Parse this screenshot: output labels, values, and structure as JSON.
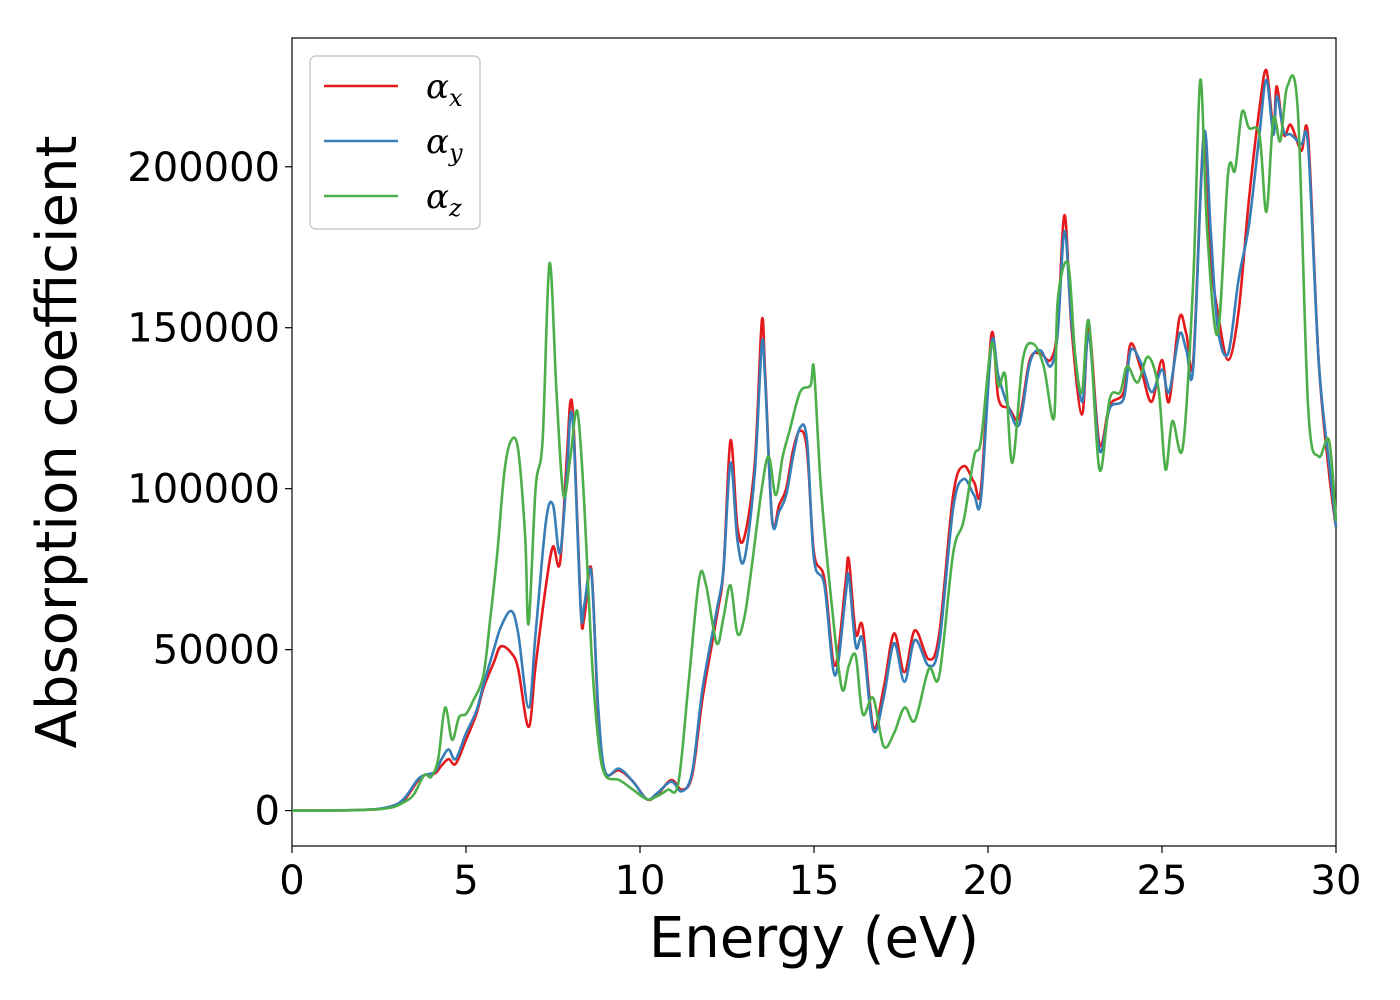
{
  "chart_data": {
    "type": "line",
    "xlabel": "Energy (eV)",
    "ylabel": "Absorption coefficient",
    "xlim": [
      0,
      30
    ],
    "ylim": [
      -11000,
      240000
    ],
    "xticks": [
      0,
      5,
      10,
      15,
      20,
      25,
      30
    ],
    "xtick_labels": [
      "0",
      "5",
      "10",
      "15",
      "20",
      "25",
      "30"
    ],
    "yticks": [
      0,
      50000,
      100000,
      150000,
      200000
    ],
    "ytick_labels": [
      "0",
      "50000",
      "100000",
      "150000",
      "200000"
    ],
    "grid": false,
    "legend_position": "top-left",
    "series": [
      {
        "symbol": "α",
        "subscript": "x",
        "color": "#e41a1c",
        "x": [
          0,
          2,
          2.8,
          3.2,
          3.6,
          3.8,
          4.1,
          4.3,
          4.5,
          4.7,
          5.0,
          5.3,
          5.5,
          5.8,
          6.0,
          6.3,
          6.5,
          6.8,
          7.0,
          7.3,
          7.5,
          7.7,
          7.9,
          8.0,
          8.1,
          8.3,
          8.4,
          8.6,
          8.8,
          9.0,
          9.4,
          9.8,
          10.2,
          10.5,
          10.9,
          11.2,
          11.5,
          11.8,
          12.2,
          12.4,
          12.6,
          12.8,
          13.0,
          13.3,
          13.5,
          13.6,
          13.8,
          14.0,
          14.2,
          14.4,
          14.6,
          14.8,
          15.0,
          15.3,
          15.6,
          15.9,
          16.0,
          16.2,
          16.4,
          16.7,
          17.0,
          17.3,
          17.6,
          17.9,
          18.3,
          18.6,
          19.0,
          19.3,
          19.6,
          19.8,
          20.1,
          20.3,
          20.6,
          20.9,
          21.2,
          21.5,
          21.8,
          22.0,
          22.2,
          22.4,
          22.7,
          22.9,
          23.2,
          23.5,
          23.9,
          24.1,
          24.4,
          24.7,
          25.0,
          25.2,
          25.5,
          25.7,
          25.9,
          26.2,
          26.4,
          26.6,
          26.9,
          27.2,
          27.5,
          27.8,
          28.0,
          28.2,
          28.3,
          28.5,
          28.7,
          29.0,
          29.2,
          29.5,
          29.8,
          30.0
        ],
        "y": [
          0,
          200,
          1000,
          3000,
          9000,
          11000,
          11500,
          14000,
          16000,
          14500,
          22000,
          30000,
          38000,
          46000,
          51000,
          49000,
          44000,
          26000,
          45000,
          70000,
          82000,
          77000,
          110000,
          127000,
          118000,
          62000,
          60000,
          75000,
          30000,
          12000,
          12500,
          9000,
          3500,
          5000,
          9500,
          6500,
          11000,
          35000,
          60000,
          75000,
          115000,
          88000,
          85000,
          108000,
          152000,
          135000,
          90000,
          95000,
          100000,
          112000,
          118000,
          112000,
          80000,
          72000,
          45000,
          70000,
          78000,
          55000,
          57000,
          26000,
          38000,
          55000,
          43000,
          56000,
          47000,
          55000,
          98000,
          107000,
          102000,
          100000,
          148000,
          128000,
          125000,
          122000,
          140000,
          142000,
          140000,
          150000,
          185000,
          150000,
          123000,
          150000,
          114000,
          126000,
          130000,
          145000,
          137000,
          127000,
          140000,
          127000,
          153000,
          148000,
          140000,
          210000,
          172000,
          155000,
          140000,
          155000,
          190000,
          218000,
          230000,
          212000,
          225000,
          210000,
          213000,
          205000,
          209000,
          140000,
          105000,
          88000
        ]
      },
      {
        "symbol": "α",
        "subscript": "y",
        "color": "#377eb8",
        "x": [
          0,
          2,
          2.8,
          3.2,
          3.6,
          3.8,
          4.1,
          4.3,
          4.5,
          4.7,
          5.0,
          5.3,
          5.5,
          5.8,
          6.0,
          6.3,
          6.5,
          6.8,
          7.0,
          7.3,
          7.5,
          7.7,
          7.9,
          8.0,
          8.1,
          8.3,
          8.4,
          8.6,
          8.8,
          9.0,
          9.4,
          9.8,
          10.2,
          10.5,
          10.9,
          11.2,
          11.5,
          11.8,
          12.2,
          12.4,
          12.6,
          12.8,
          13.0,
          13.3,
          13.5,
          13.6,
          13.8,
          14.0,
          14.2,
          14.4,
          14.6,
          14.8,
          15.0,
          15.3,
          15.6,
          15.9,
          16.0,
          16.2,
          16.4,
          16.7,
          17.0,
          17.3,
          17.6,
          17.9,
          18.3,
          18.6,
          19.0,
          19.3,
          19.6,
          19.8,
          20.1,
          20.3,
          20.6,
          20.9,
          21.2,
          21.5,
          21.8,
          22.0,
          22.2,
          22.4,
          22.7,
          22.9,
          23.2,
          23.5,
          23.9,
          24.1,
          24.4,
          24.7,
          25.0,
          25.2,
          25.5,
          25.7,
          25.9,
          26.2,
          26.4,
          26.6,
          26.9,
          27.2,
          27.5,
          27.8,
          28.0,
          28.2,
          28.3,
          28.5,
          28.7,
          29.0,
          29.2,
          29.5,
          29.8,
          30.0
        ],
        "y": [
          0,
          200,
          1200,
          3500,
          9500,
          11000,
          12000,
          16000,
          19000,
          16000,
          24000,
          31000,
          39000,
          50000,
          57000,
          62000,
          55000,
          32000,
          55000,
          90000,
          95000,
          80000,
          105000,
          123000,
          115000,
          62000,
          64000,
          74000,
          32000,
          12000,
          13000,
          9000,
          3500,
          5500,
          9000,
          6000,
          12000,
          38000,
          62000,
          75000,
          108000,
          84000,
          78000,
          105000,
          145000,
          133000,
          90000,
          93000,
          98000,
          110000,
          119000,
          115000,
          78000,
          70000,
          42000,
          66000,
          73000,
          51000,
          53000,
          25000,
          35000,
          52000,
          40000,
          53000,
          45000,
          52000,
          94000,
          103000,
          98000,
          97000,
          145000,
          135000,
          125000,
          120000,
          139000,
          143000,
          138000,
          148000,
          180000,
          152000,
          127000,
          148000,
          112000,
          125000,
          128000,
          143000,
          139000,
          130000,
          137000,
          130000,
          148000,
          143000,
          138000,
          210000,
          180000,
          150000,
          142000,
          165000,
          182000,
          210000,
          227000,
          210000,
          222000,
          211000,
          210000,
          207000,
          206000,
          140000,
          108000,
          88000
        ]
      },
      {
        "symbol": "α",
        "subscript": "z",
        "color": "#4daf4a",
        "x": [
          0,
          2,
          2.8,
          3.2,
          3.5,
          3.8,
          4.0,
          4.2,
          4.4,
          4.6,
          4.8,
          5.0,
          5.2,
          5.5,
          5.7,
          5.9,
          6.1,
          6.3,
          6.5,
          6.7,
          6.8,
          7.0,
          7.2,
          7.4,
          7.6,
          7.8,
          8.0,
          8.2,
          8.4,
          8.6,
          8.8,
          9.0,
          9.4,
          9.8,
          10.2,
          10.5,
          10.8,
          11.1,
          11.4,
          11.7,
          11.9,
          12.2,
          12.4,
          12.6,
          12.8,
          13.0,
          13.2,
          13.5,
          13.7,
          13.9,
          14.1,
          14.3,
          14.6,
          14.9,
          15.0,
          15.2,
          15.5,
          15.8,
          16.0,
          16.2,
          16.4,
          16.7,
          17.0,
          17.3,
          17.6,
          17.9,
          18.3,
          18.6,
          19.0,
          19.3,
          19.6,
          19.8,
          20.1,
          20.3,
          20.5,
          20.7,
          21.0,
          21.3,
          21.6,
          21.9,
          22.0,
          22.3,
          22.5,
          22.7,
          22.9,
          23.2,
          23.5,
          23.8,
          24.0,
          24.3,
          24.6,
          24.9,
          25.1,
          25.3,
          25.6,
          25.9,
          26.1,
          26.3,
          26.6,
          26.9,
          27.1,
          27.3,
          27.5,
          27.8,
          28.0,
          28.2,
          28.4,
          28.6,
          28.9,
          29.2,
          29.5,
          29.8,
          30.0
        ],
        "y": [
          0,
          200,
          800,
          2500,
          5000,
          11000,
          10500,
          16000,
          32000,
          22000,
          29000,
          30000,
          34000,
          42000,
          60000,
          80000,
          105000,
          115000,
          112000,
          85000,
          58000,
          100000,
          115000,
          170000,
          130000,
          98000,
          110000,
          124000,
          95000,
          50000,
          22000,
          11000,
          9500,
          6500,
          3500,
          4500,
          6500,
          8500,
          40000,
          72000,
          70000,
          52000,
          60000,
          70000,
          55000,
          60000,
          75000,
          100000,
          110000,
          98000,
          110000,
          118000,
          130000,
          132000,
          137000,
          100000,
          65000,
          38000,
          45000,
          48000,
          30000,
          35000,
          20000,
          24000,
          32000,
          28000,
          44000,
          42000,
          80000,
          90000,
          110000,
          115000,
          145000,
          132000,
          135000,
          108000,
          140000,
          145000,
          138000,
          122000,
          158000,
          170000,
          142000,
          130000,
          152000,
          106000,
          128000,
          130000,
          138000,
          133000,
          141000,
          131000,
          106000,
          121000,
          113000,
          165000,
          227000,
          180000,
          148000,
          198000,
          199000,
          217000,
          212000,
          210000,
          186000,
          215000,
          208000,
          225000,
          218000,
          125000,
          110000,
          115000,
          90000
        ]
      }
    ]
  }
}
